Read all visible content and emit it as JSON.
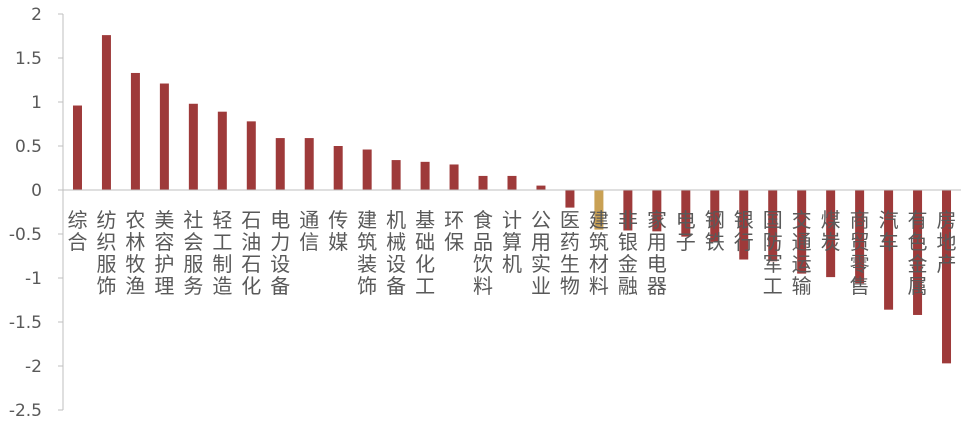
{
  "chart_data": {
    "type": "bar",
    "title": "",
    "xlabel": "",
    "ylabel": "",
    "ylim": [
      -2.5,
      2
    ],
    "yticks": [
      "2",
      "1.5",
      "1",
      "0.5",
      "0",
      "-0.5",
      "-1",
      "-1.5",
      "-2",
      "-2.5"
    ],
    "grid": false,
    "legend": "none",
    "colors": {
      "default": "#9E3A3A",
      "highlight": "#C9A154"
    },
    "highlight_category": "建筑材料",
    "categories": [
      "综合",
      "纺织服饰",
      "农林牧渔",
      "美容护理",
      "社会服务",
      "轻工制造",
      "石油石化",
      "电力设备",
      "通信",
      "传媒",
      "建筑装饰",
      "机械设备",
      "基础化工",
      "环保",
      "食品饮料",
      "计算机",
      "公用实业",
      "医药生物",
      "建筑材料",
      "非银金融",
      "家用电器",
      "电子",
      "钢铁",
      "银行",
      "国防军工",
      "交通运输",
      "煤炭",
      "商贸零售",
      "汽车",
      "有色金属",
      "房地产"
    ],
    "values": [
      0.96,
      1.76,
      1.33,
      1.21,
      0.98,
      0.89,
      0.78,
      0.59,
      0.59,
      0.5,
      0.46,
      0.34,
      0.32,
      0.29,
      0.16,
      0.16,
      0.05,
      -0.2,
      -0.45,
      -0.46,
      -0.47,
      -0.53,
      -0.59,
      -0.79,
      -0.81,
      -0.95,
      -0.99,
      -1.06,
      -1.36,
      -1.42,
      -1.97
    ]
  }
}
